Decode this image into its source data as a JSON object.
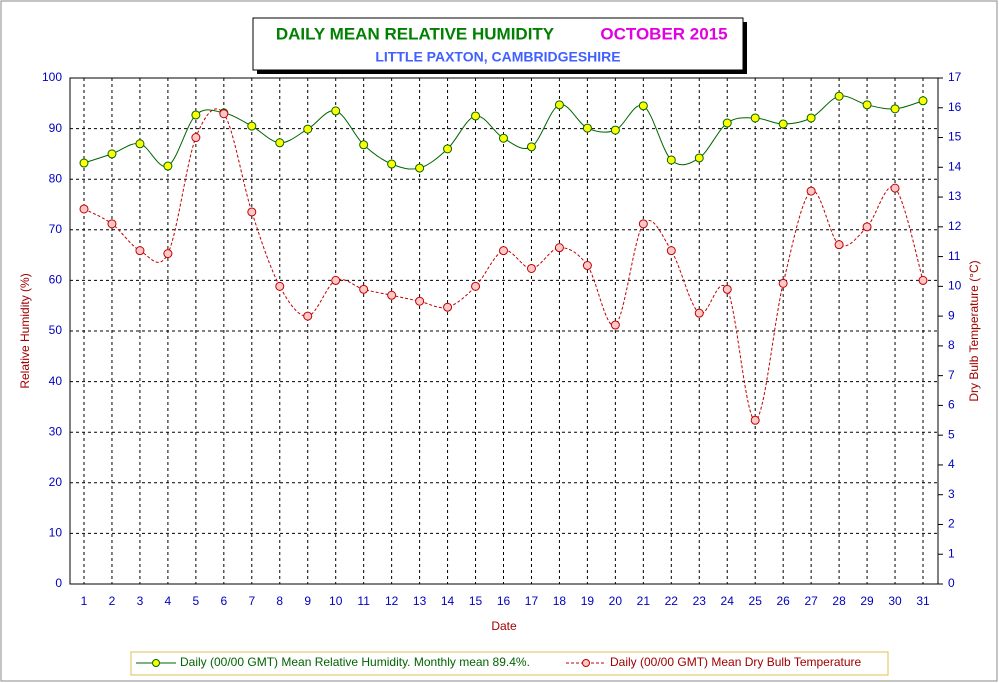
{
  "chart_data": {
    "type": "line",
    "title": "DAILY MEAN RELATIVE HUMIDITY",
    "period": "OCTOBER 2015",
    "subtitle": "LITTLE PAXTON, CAMBRIDGESHIRE",
    "xlabel": "Date",
    "ylabel": "Relative Humidity (%)",
    "y2label": "Dry Bulb Temperature (°C)",
    "categories": [
      "1",
      "2",
      "3",
      "4",
      "5",
      "6",
      "7",
      "8",
      "9",
      "10",
      "11",
      "12",
      "13",
      "14",
      "15",
      "16",
      "17",
      "18",
      "19",
      "20",
      "21",
      "22",
      "23",
      "24",
      "25",
      "26",
      "27",
      "28",
      "29",
      "30",
      "31"
    ],
    "series": [
      {
        "name": "Daily (00/00 GMT) Mean Relative Humidity. Monthly mean 89.4%.",
        "color": "#006400",
        "marker_fill": "#ffff00",
        "dashed": false,
        "values": [
          83.2,
          85.0,
          87.0,
          82.6,
          92.7,
          93.1,
          90.5,
          87.2,
          89.9,
          93.5,
          86.8,
          83.0,
          82.2,
          86.0,
          92.5,
          88.1,
          86.4,
          94.7,
          90.1,
          89.7,
          94.5,
          83.8,
          84.2,
          91.1,
          92.1,
          90.9,
          92.1,
          96.4,
          94.7,
          93.9,
          95.5
        ]
      },
      {
        "name": "Daily (00/00 GMT) Mean Dry Bulb Temperature",
        "color": "#c00000",
        "marker_fill": "#ffc8c8",
        "dashed": true,
        "axis": "y2",
        "values": [
          12.6,
          12.1,
          11.2,
          11.1,
          15.0,
          15.8,
          12.5,
          10.0,
          9.0,
          10.2,
          9.9,
          9.7,
          9.5,
          9.3,
          10.0,
          11.2,
          10.6,
          11.3,
          10.7,
          8.7,
          12.1,
          11.2,
          9.1,
          9.9,
          5.5,
          10.1,
          13.2,
          11.4,
          12.0,
          13.3,
          10.2
        ]
      }
    ],
    "ylim": [
      0,
      100
    ],
    "yticks": [
      0,
      10,
      20,
      30,
      40,
      50,
      60,
      70,
      80,
      90,
      100
    ],
    "y2lim": [
      0,
      17
    ],
    "y2ticks": [
      0,
      1,
      2,
      3,
      4,
      5,
      6,
      7,
      8,
      9,
      10,
      11,
      12,
      13,
      14,
      15,
      16,
      17
    ],
    "grid": true
  }
}
